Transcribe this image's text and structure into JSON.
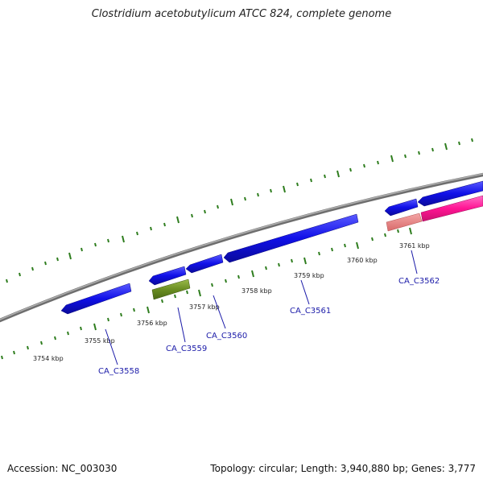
{
  "title": "Clostridium acetobutylicum ATCC 824, complete genome",
  "footer": {
    "accession": "Accession: NC_003030",
    "summary": "Topology: circular; Length: 3,940,880 bp; Genes: 3,777"
  },
  "colors": {
    "backbone": "#8a8a8a",
    "tick": "#2e7d1e",
    "gene_blue": "#1515e6",
    "gene_olive": "#6b8e23",
    "gene_salmon": "#e88080",
    "gene_pink": "#ff1493",
    "label_link": "#1a1aa8"
  },
  "kbp_labels": [
    "3754 kbp",
    "3755 kbp",
    "3756 kbp",
    "3757 kbp",
    "3758 kbp",
    "3759 kbp",
    "3760 kbp",
    "3761 kbp"
  ],
  "gene_labels": [
    "CA_C3558",
    "CA_C3559",
    "CA_C3560",
    "CA_C3561",
    "CA_C3562"
  ]
}
